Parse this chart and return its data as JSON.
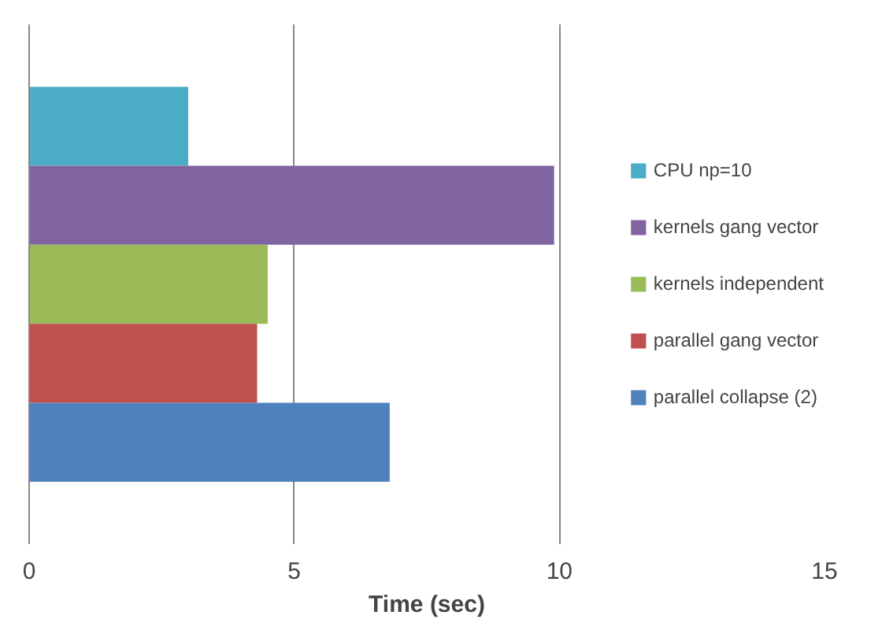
{
  "chart_data": {
    "type": "bar",
    "orientation": "horizontal",
    "xlabel": "Time (sec)",
    "categories": [
      null
    ],
    "series": [
      {
        "name": "CPU np=10",
        "color": "#4bacc6",
        "values": [
          3.0
        ]
      },
      {
        "name": "kernels gang vector",
        "color": "#8064a2",
        "values": [
          9.9
        ]
      },
      {
        "name": "kernels independent",
        "color": "#9bbb59",
        "values": [
          4.5
        ]
      },
      {
        "name": "parallel gang vector",
        "color": "#c0504d",
        "values": [
          4.3
        ]
      },
      {
        "name": "parallel collapse (2)",
        "color": "#4f81bd",
        "values": [
          6.8
        ]
      }
    ],
    "xlim": [
      0,
      15
    ],
    "xticks": [
      0,
      5,
      10,
      15
    ],
    "grid": "x",
    "legend": "right",
    "tick_labels": "x"
  }
}
